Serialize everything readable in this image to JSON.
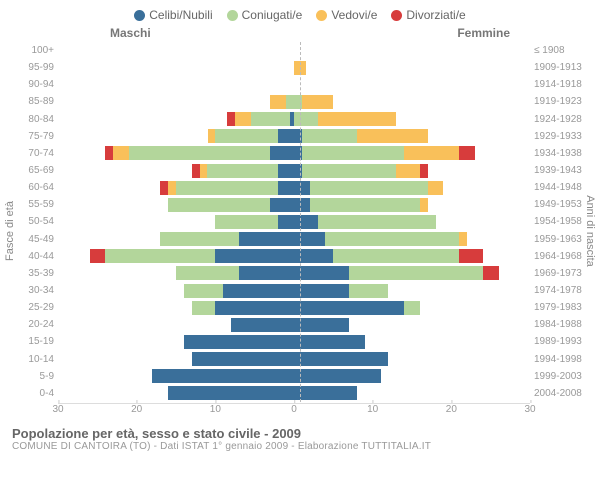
{
  "legend": [
    {
      "label": "Celibi/Nubili",
      "color": "#3a6f9a"
    },
    {
      "label": "Coniugati/e",
      "color": "#b3d69b"
    },
    {
      "label": "Vedovi/e",
      "color": "#f9c05a"
    },
    {
      "label": "Divorziati/e",
      "color": "#d73c3c"
    }
  ],
  "headers": {
    "male": "Maschi",
    "female": "Femmine"
  },
  "axes": {
    "left_title": "Fasce di età",
    "right_title": "Anni di nascita",
    "x_max": 30,
    "x_ticks": [
      30,
      20,
      10,
      0,
      10,
      20,
      30
    ]
  },
  "colors": {
    "celibi": "#3a6f9a",
    "coniugati": "#b3d69b",
    "vedovi": "#f9c05a",
    "divorziati": "#d73c3c",
    "bg": "#ffffff",
    "text_muted": "#999999",
    "centerline": "#bbbbbb"
  },
  "rows": [
    {
      "age": "100+",
      "birth": "≤ 1908",
      "m": [
        0,
        0,
        0,
        0
      ],
      "f": [
        0,
        0,
        0,
        0
      ]
    },
    {
      "age": "95-99",
      "birth": "1909-1913",
      "m": [
        0,
        0,
        0,
        0
      ],
      "f": [
        0,
        0,
        1.5,
        0
      ]
    },
    {
      "age": "90-94",
      "birth": "1914-1918",
      "m": [
        0,
        0,
        0,
        0
      ],
      "f": [
        0,
        0,
        0,
        0
      ]
    },
    {
      "age": "85-89",
      "birth": "1919-1923",
      "m": [
        0,
        1,
        2,
        0
      ],
      "f": [
        0,
        1,
        4,
        0
      ]
    },
    {
      "age": "80-84",
      "birth": "1924-1928",
      "m": [
        0.5,
        5,
        2,
        1
      ],
      "f": [
        0,
        3,
        10,
        0
      ]
    },
    {
      "age": "75-79",
      "birth": "1929-1933",
      "m": [
        2,
        8,
        1,
        0
      ],
      "f": [
        1,
        7,
        9,
        0
      ]
    },
    {
      "age": "70-74",
      "birth": "1934-1938",
      "m": [
        3,
        18,
        2,
        1
      ],
      "f": [
        1,
        13,
        7,
        2
      ]
    },
    {
      "age": "65-69",
      "birth": "1939-1943",
      "m": [
        2,
        9,
        1,
        1
      ],
      "f": [
        1,
        12,
        3,
        1
      ]
    },
    {
      "age": "60-64",
      "birth": "1944-1948",
      "m": [
        2,
        13,
        1,
        1
      ],
      "f": [
        2,
        15,
        2,
        0
      ]
    },
    {
      "age": "55-59",
      "birth": "1949-1953",
      "m": [
        3,
        13,
        0,
        0
      ],
      "f": [
        2,
        14,
        1,
        0
      ]
    },
    {
      "age": "50-54",
      "birth": "1954-1958",
      "m": [
        2,
        8,
        0,
        0
      ],
      "f": [
        3,
        15,
        0,
        0
      ]
    },
    {
      "age": "45-49",
      "birth": "1959-1963",
      "m": [
        7,
        10,
        0,
        0
      ],
      "f": [
        4,
        17,
        1,
        0
      ]
    },
    {
      "age": "40-44",
      "birth": "1964-1968",
      "m": [
        10,
        14,
        0,
        2
      ],
      "f": [
        5,
        16,
        0,
        3
      ]
    },
    {
      "age": "35-39",
      "birth": "1969-1973",
      "m": [
        7,
        8,
        0,
        0
      ],
      "f": [
        7,
        17,
        0,
        2
      ]
    },
    {
      "age": "30-34",
      "birth": "1974-1978",
      "m": [
        9,
        5,
        0,
        0
      ],
      "f": [
        7,
        5,
        0,
        0
      ]
    },
    {
      "age": "25-29",
      "birth": "1979-1983",
      "m": [
        10,
        3,
        0,
        0
      ],
      "f": [
        14,
        2,
        0,
        0
      ]
    },
    {
      "age": "20-24",
      "birth": "1984-1988",
      "m": [
        8,
        0,
        0,
        0
      ],
      "f": [
        7,
        0,
        0,
        0
      ]
    },
    {
      "age": "15-19",
      "birth": "1989-1993",
      "m": [
        14,
        0,
        0,
        0
      ],
      "f": [
        9,
        0,
        0,
        0
      ]
    },
    {
      "age": "10-14",
      "birth": "1994-1998",
      "m": [
        13,
        0,
        0,
        0
      ],
      "f": [
        12,
        0,
        0,
        0
      ]
    },
    {
      "age": "5-9",
      "birth": "1999-2003",
      "m": [
        18,
        0,
        0,
        0
      ],
      "f": [
        11,
        0,
        0,
        0
      ]
    },
    {
      "age": "0-4",
      "birth": "2004-2008",
      "m": [
        16,
        0,
        0,
        0
      ],
      "f": [
        8,
        0,
        0,
        0
      ]
    }
  ],
  "footer": {
    "title": "Popolazione per età, sesso e stato civile - 2009",
    "sub": "COMUNE DI CANTOIRA (TO) - Dati ISTAT 1° gennaio 2009 - Elaborazione TUTTITALIA.IT"
  }
}
